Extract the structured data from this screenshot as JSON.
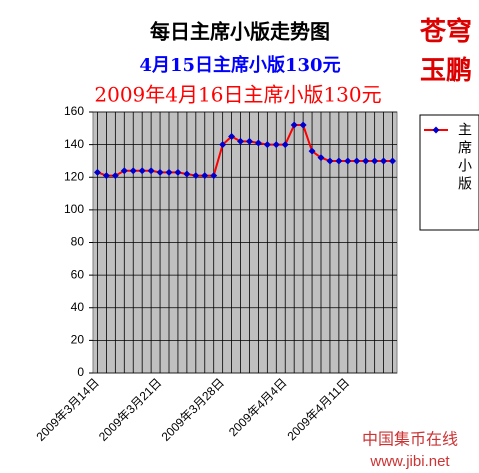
{
  "chart_data": {
    "type": "line",
    "title": "每日主席小版走势图",
    "subtitle": "4月15日主席小版130元",
    "subtitle2": "2009年4月16日主席小版130元",
    "watermark": [
      "苍穹",
      "玉鹏"
    ],
    "logo": [
      "中国集币在线",
      "www.jibi.net"
    ],
    "categories": [
      "2009年3月14日",
      null,
      null,
      null,
      null,
      null,
      null,
      "2009年3月21日",
      null,
      null,
      null,
      null,
      null,
      null,
      "2009年3月28日",
      null,
      null,
      null,
      null,
      null,
      null,
      "2009年4月4日",
      null,
      null,
      null,
      null,
      null,
      null,
      "2009年4月11日",
      null,
      null,
      null,
      null,
      null
    ],
    "series": [
      {
        "name": "主席小版",
        "color": "#ff0000",
        "marker_color": "#0000cc",
        "values": [
          123,
          121,
          121,
          124,
          124,
          124,
          124,
          123,
          123,
          123,
          122,
          121,
          121,
          121,
          140,
          145,
          142,
          142,
          141,
          140,
          140,
          140,
          152,
          152,
          136,
          132,
          130,
          130,
          130,
          130,
          130,
          130,
          130,
          130
        ]
      }
    ],
    "ylim": [
      0,
      160
    ],
    "yticks": [
      0,
      20,
      40,
      60,
      80,
      100,
      120,
      140,
      160
    ],
    "grid": true,
    "legend": "right"
  }
}
